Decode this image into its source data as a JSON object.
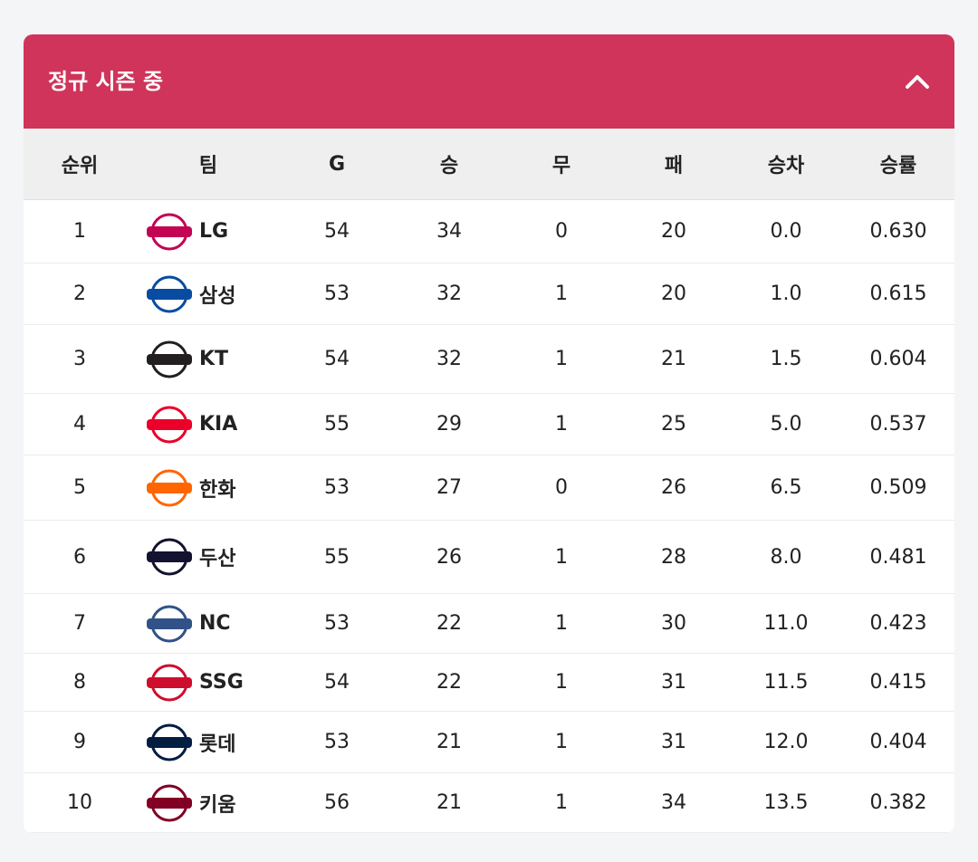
{
  "header": {
    "title": "정규 시즌 중"
  },
  "table": {
    "columns": [
      "순위",
      "팀",
      "G",
      "승",
      "무",
      "패",
      "승차",
      "승률"
    ],
    "rows": [
      [
        "1",
        "LG",
        "54",
        "34",
        "0",
        "20",
        "0.0",
        "0.630"
      ],
      [
        "2",
        "삼성",
        "53",
        "32",
        "1",
        "20",
        "1.0",
        "0.615"
      ],
      [
        "3",
        "KT",
        "54",
        "32",
        "1",
        "21",
        "1.5",
        "0.604"
      ],
      [
        "4",
        "KIA",
        "55",
        "29",
        "1",
        "25",
        "5.0",
        "0.537"
      ],
      [
        "5",
        "한화",
        "53",
        "27",
        "0",
        "26",
        "6.5",
        "0.509"
      ],
      [
        "6",
        "두산",
        "55",
        "26",
        "1",
        "28",
        "8.0",
        "0.481"
      ],
      [
        "7",
        "NC",
        "53",
        "22",
        "1",
        "30",
        "11.0",
        "0.423"
      ],
      [
        "8",
        "SSG",
        "54",
        "22",
        "1",
        "31",
        "11.5",
        "0.415"
      ],
      [
        "9",
        "롯데",
        "53",
        "21",
        "1",
        "31",
        "12.0",
        "0.404"
      ],
      [
        "10",
        "키움",
        "56",
        "21",
        "1",
        "34",
        "13.5",
        "0.382"
      ]
    ]
  }
}
